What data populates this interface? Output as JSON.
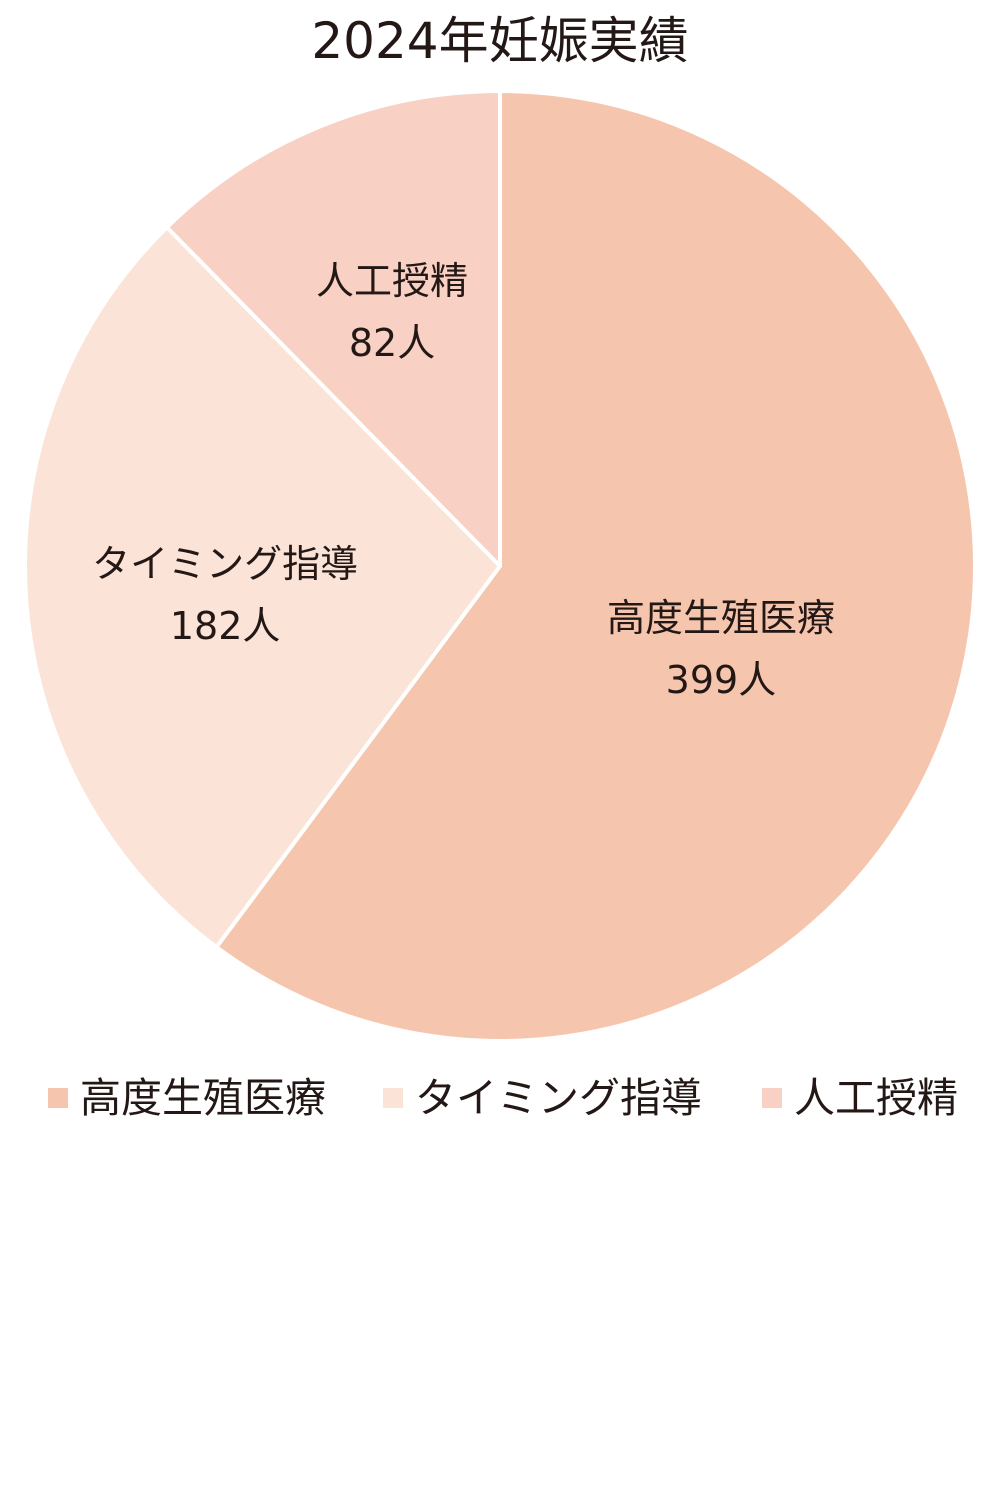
{
  "chart_data": {
    "type": "pie",
    "title": "2024年妊娠実績",
    "slices": [
      {
        "label": "高度生殖医療",
        "value": 399,
        "value_text": "399人",
        "color": "#f6c5ad"
      },
      {
        "label": "タイミング指導",
        "value": 182,
        "value_text": "182人",
        "color": "#fbe3d7"
      },
      {
        "label": "人工授精",
        "value": 82,
        "value_text": "82人",
        "color": "#f8d0c4"
      }
    ],
    "start_angle": "12 o'clock",
    "direction": "clockwise",
    "legend": {
      "placement": "bottom",
      "items": [
        "高度生殖医療",
        "タイミング指導",
        "人工授精"
      ]
    },
    "separator_color": "#ffffff"
  }
}
